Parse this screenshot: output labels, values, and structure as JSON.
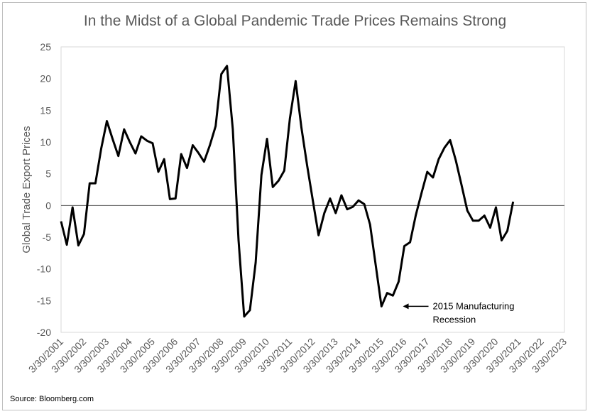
{
  "chart_data": {
    "type": "line",
    "title": "In the Midst of a Global Pandemic Trade Prices Remains Strong",
    "xlabel": "",
    "ylabel": "Global Trade Export Prices",
    "ylim": [
      -20,
      25
    ],
    "yticks": [
      25,
      20,
      15,
      10,
      5,
      0,
      -5,
      -10,
      -15,
      -20
    ],
    "xticks": [
      "3/30/2001",
      "3/30/2002",
      "3/30/2003",
      "3/30/2004",
      "3/30/2005",
      "3/30/2006",
      "3/30/2007",
      "3/30/2008",
      "3/30/2009",
      "3/30/2010",
      "3/30/2011",
      "3/30/2012",
      "3/30/2013",
      "3/30/2014",
      "3/30/2015",
      "3/30/2016",
      "3/30/2017",
      "3/30/2018",
      "3/30/2019",
      "3/30/2020",
      "3/30/2021",
      "3/30/2022",
      "3/30/2023"
    ],
    "grid": "horizontal",
    "legend": "none",
    "line_color": "#000000",
    "series": [
      {
        "x": [
          "2001-03-30",
          "2001-06-30",
          "2001-09-30",
          "2001-12-31",
          "2002-03-31",
          "2002-06-30",
          "2002-09-30",
          "2002-12-31",
          "2003-03-31",
          "2003-06-30",
          "2003-09-30",
          "2003-12-31",
          "2004-03-31",
          "2004-06-30",
          "2004-09-30",
          "2004-12-31",
          "2005-03-31",
          "2005-06-30",
          "2005-09-30",
          "2005-12-31",
          "2006-03-31",
          "2006-06-30",
          "2006-09-30",
          "2006-12-31",
          "2007-03-31",
          "2007-06-30",
          "2007-09-30",
          "2007-12-31",
          "2008-03-31",
          "2008-06-30",
          "2008-09-30",
          "2008-12-31",
          "2009-03-31",
          "2009-06-30",
          "2009-09-30",
          "2009-12-31",
          "2010-03-31",
          "2010-06-30",
          "2010-09-30",
          "2010-12-31",
          "2011-03-31",
          "2011-06-30",
          "2011-09-30",
          "2011-12-31",
          "2012-03-31",
          "2012-06-30",
          "2012-09-30",
          "2012-12-31",
          "2013-03-31",
          "2013-06-30",
          "2013-09-30",
          "2013-12-31",
          "2014-03-31",
          "2014-06-30",
          "2014-09-30",
          "2014-12-31",
          "2015-03-31",
          "2015-06-30",
          "2015-09-30",
          "2015-12-31",
          "2016-03-31",
          "2016-06-30",
          "2016-09-30",
          "2016-12-31",
          "2017-03-31",
          "2017-06-30",
          "2017-09-30",
          "2017-12-31",
          "2018-03-31",
          "2018-06-30",
          "2018-09-30",
          "2018-12-31",
          "2019-03-31",
          "2019-06-30",
          "2019-09-30",
          "2019-12-31",
          "2020-03-31",
          "2020-06-30",
          "2020-09-30",
          "2020-12-31"
        ],
        "values": [
          -2.5,
          -6.2,
          -0.3,
          -6.3,
          -4.5,
          3.5,
          3.5,
          9.0,
          13.3,
          10.5,
          7.8,
          12.0,
          10.0,
          8.2,
          10.9,
          10.2,
          9.8,
          5.3,
          7.3,
          1.0,
          1.1,
          8.1,
          5.9,
          9.5,
          8.3,
          6.9,
          9.5,
          12.5,
          20.7,
          22.0,
          12.0,
          -5.5,
          -17.5,
          -16.5,
          -9.0,
          4.8,
          10.5,
          2.9,
          3.9,
          5.5,
          13.7,
          19.6,
          12.3,
          6.3,
          0.8,
          -4.7,
          -1.2,
          1.1,
          -1.2,
          1.6,
          -0.6,
          -0.2,
          0.8,
          0.2,
          -3.0,
          -9.5,
          -15.9,
          -13.8,
          -14.2,
          -12.0,
          -6.4,
          -5.8,
          -1.5,
          2.0,
          5.3,
          4.4,
          7.3,
          9.1,
          10.3,
          7.1,
          3.2,
          -0.8,
          -2.4,
          -2.4,
          -1.6,
          -3.5,
          -0.3,
          -5.5,
          -4.0,
          0.6
        ]
      }
    ],
    "annotations": [
      {
        "text_line1": "2015 Manufacturing",
        "text_line2": "Recession",
        "target_x": "2015-12-31",
        "target_y": -15.9
      }
    ],
    "source": "Source: Bloomberg.com"
  }
}
